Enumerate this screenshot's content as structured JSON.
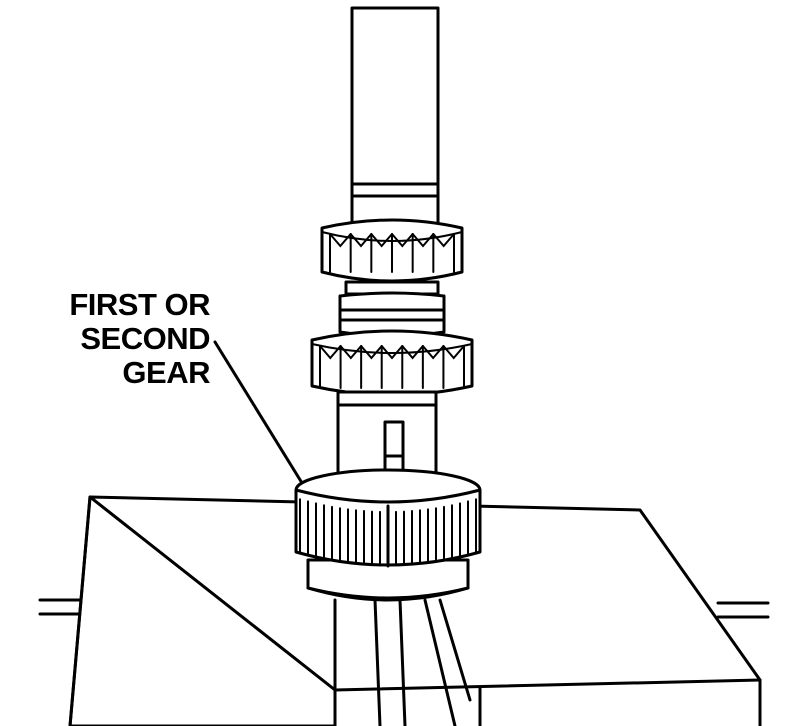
{
  "callout": {
    "lines": [
      "FIRST OR",
      "SECOND",
      "GEAR"
    ]
  }
}
